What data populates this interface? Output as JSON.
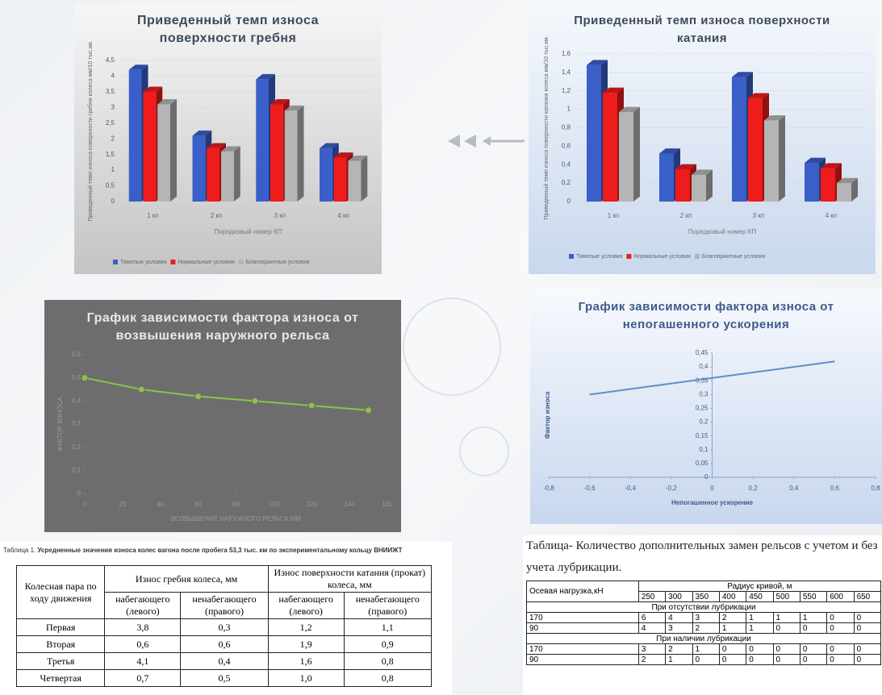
{
  "chart_data": [
    {
      "type": "bar",
      "title": "Приведенный темп износа поверхности гребня",
      "y_label": "Приведенный темп износа поверхности гребня колеса мм/10 тыс.км.",
      "x_label": "Порядковый номер КП",
      "categories": [
        "1 кп",
        "2 кп",
        "3 кп",
        "4 кп"
      ],
      "series": [
        {
          "name": "Тяжелые условия",
          "color": "#3a5fc8",
          "values": [
            4.2,
            2.1,
            3.9,
            1.7
          ]
        },
        {
          "name": "Нормальные условия",
          "color": "#ee1c1c",
          "values": [
            3.5,
            1.7,
            3.1,
            1.4
          ]
        },
        {
          "name": "Благоприятные условия",
          "color": "#b5b5b5",
          "values": [
            3.1,
            1.6,
            2.9,
            1.3
          ]
        }
      ],
      "ylim": [
        0,
        4.5
      ],
      "yticks": [
        0,
        {
          "value": 0.5,
          "label": "0,5"
        },
        1,
        {
          "value": 1.5,
          "label": "1,5"
        },
        2,
        {
          "value": 2.5,
          "label": "2,5"
        },
        3,
        {
          "value": 3.5,
          "label": "3,5"
        },
        4,
        {
          "value": 4.5,
          "label": "4,5"
        }
      ],
      "grid": true
    },
    {
      "type": "bar",
      "title": "Приведенный темп износа поверхности катания",
      "y_label": "Приведенный темп износа поверхности катания колеса мм/10 тыс.км.",
      "x_label": "Порядковый номер КП",
      "categories": [
        "1 кп",
        "2 кп",
        "3 кп",
        "4 кп"
      ],
      "series": [
        {
          "name": "Тяжелые условия",
          "color": "#3a5fc8",
          "values": [
            1.48,
            0.52,
            1.35,
            0.42
          ]
        },
        {
          "name": "Нормальные условия",
          "color": "#ee1c1c",
          "values": [
            1.18,
            0.35,
            1.12,
            0.36
          ]
        },
        {
          "name": "Благоприятные условия",
          "color": "#b5b5b5",
          "values": [
            0.97,
            0.29,
            0.88,
            0.2
          ]
        }
      ],
      "ylim": [
        0,
        1.6
      ],
      "yticks": [
        0,
        {
          "value": 0.2,
          "label": "0,2"
        },
        {
          "value": 0.4,
          "label": "0,4"
        },
        {
          "value": 0.6,
          "label": "0,6"
        },
        {
          "value": 0.8,
          "label": "0,8"
        },
        1,
        {
          "value": 1.2,
          "label": "1,2"
        },
        {
          "value": 1.4,
          "label": "1,4"
        },
        {
          "value": 1.6,
          "label": "1,6"
        }
      ],
      "grid": true
    },
    {
      "type": "line",
      "title": "График зависимости фактора износа от возвышения наружного рельса",
      "y_label": "ФАКТОР ИЗНОСА",
      "x_label": "ВОЗВЫШЕНИЕ НАРУЖНОГО РЕЛЬСА,ММ",
      "x": [
        0,
        30,
        60,
        90,
        120,
        150
      ],
      "values": [
        0.5,
        0.45,
        0.42,
        0.4,
        0.38,
        0.36
      ],
      "color": "#8bc34a",
      "xlim": [
        0,
        160
      ],
      "xticks": [
        0,
        20,
        40,
        60,
        80,
        100,
        120,
        140,
        160
      ],
      "ylim": [
        0,
        0.6
      ],
      "yticks": [
        0,
        {
          "value": 0.1,
          "label": "0,1"
        },
        {
          "value": 0.2,
          "label": "0,2"
        },
        {
          "value": 0.3,
          "label": "0,3"
        },
        {
          "value": 0.4,
          "label": "0,4"
        },
        {
          "value": 0.5,
          "label": "0,5"
        },
        {
          "value": 0.6,
          "label": "0,6"
        }
      ],
      "markers": true
    },
    {
      "type": "line",
      "title": "График зависимости фактора износа от непогашенного ускорения",
      "y_label": "Фактор износа",
      "x_label": "Непогашенное ускорение",
      "x": [
        -0.6,
        0.6
      ],
      "values": [
        0.3,
        0.42
      ],
      "color": "#5b8fc7",
      "xlim": [
        -0.8,
        0.8
      ],
      "xticks": [
        {
          "value": -0.8,
          "label": "-0,8"
        },
        {
          "value": -0.6,
          "label": "-0,6"
        },
        {
          "value": -0.4,
          "label": "-0,4"
        },
        {
          "value": -0.2,
          "label": "-0,2"
        },
        0,
        {
          "value": 0.2,
          "label": "0,2"
        },
        {
          "value": 0.4,
          "label": "0,4"
        },
        {
          "value": 0.6,
          "label": "0,6"
        },
        {
          "value": 0.8,
          "label": "0,8"
        }
      ],
      "ylim": [
        0,
        0.45
      ],
      "yticks": [
        0,
        {
          "value": 0.05,
          "label": "0,05"
        },
        {
          "value": 0.1,
          "label": "0,1"
        },
        {
          "value": 0.15,
          "label": "0,15"
        },
        {
          "value": 0.2,
          "label": "0,2"
        },
        {
          "value": 0.25,
          "label": "0,25"
        },
        {
          "value": 0.3,
          "label": "0,3"
        },
        {
          "value": 0.35,
          "label": "0,35"
        },
        {
          "value": 0.4,
          "label": "0,4"
        },
        {
          "value": 0.45,
          "label": "0,45"
        }
      ],
      "markers": false
    }
  ],
  "table1": {
    "caption_label": "Таблица 1.",
    "caption": "Усредненные значения износа колес вагона после пробега 53,3 тыс. км по экспериментальному кольцу ВНИИЖТ",
    "header": [
      "Колесная пара по ходу движения",
      "Износ гребня колеса, мм",
      "Износ поверхности катания (прокат) колеса, мм"
    ],
    "subheader": [
      "набегающего (левого)",
      "ненабегающего (правого)",
      "набегающего (левого)",
      "ненабегающего (правого)"
    ],
    "rows": [
      [
        "Первая",
        "3,8",
        "0,3",
        "1,2",
        "1,1"
      ],
      [
        "Вторая",
        "0,6",
        "0,6",
        "1,9",
        "0,9"
      ],
      [
        "Третья",
        "4,1",
        "0,4",
        "1,6",
        "0,8"
      ],
      [
        "Четвертая",
        "0,7",
        "0,5",
        "1,0",
        "0,8"
      ]
    ]
  },
  "table2": {
    "caption": "Таблица- Количество дополнительных замен рельсов с учетом и без учета лубрикации.",
    "header": [
      "Осевая нагрузка,кН",
      "Радиус кривой, м"
    ],
    "radii": [
      "250",
      "300",
      "350",
      "400",
      "450",
      "500",
      "550",
      "600",
      "650"
    ],
    "sections": [
      {
        "title": "При отсутствии лубрикации",
        "rows": [
          [
            "170",
            "6",
            "4",
            "3",
            "2",
            "1",
            "1",
            "1",
            "0",
            "0"
          ],
          [
            "90",
            "4",
            "3",
            "2",
            "1",
            "1",
            "0",
            "0",
            "0",
            "0"
          ]
        ]
      },
      {
        "title": "При наличии лубрикации",
        "rows": [
          [
            "170",
            "3",
            "2",
            "1",
            "0",
            "0",
            "0",
            "0",
            "0",
            "0"
          ],
          [
            "90",
            "2",
            "1",
            "0",
            "0",
            "0",
            "0",
            "0",
            "0",
            "0"
          ]
        ]
      }
    ]
  }
}
